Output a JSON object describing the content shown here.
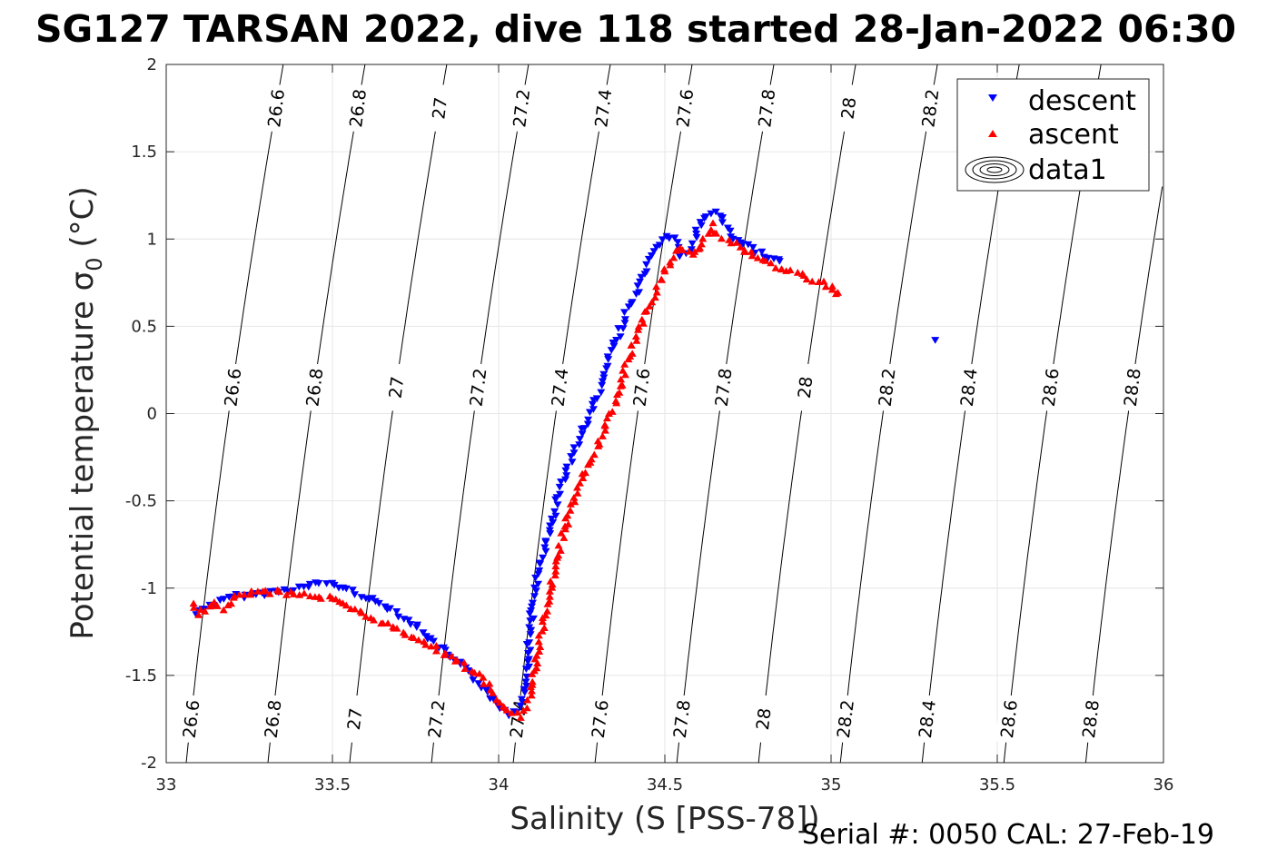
{
  "chart_data": {
    "type": "scatter",
    "title": "SG127 TARSAN 2022, dive 118 started 28-Jan-2022 06:30",
    "xlabel": "Salinity (S [PSS-78])",
    "ylabel_main": "Potential temperature ",
    "ylabel_sym": "σ",
    "ylabel_sub": "0",
    "ylabel_unit": " (°C)",
    "xlim": [
      33,
      36
    ],
    "ylim": [
      -2,
      2
    ],
    "x_ticks": [
      "33",
      "33.5",
      "34",
      "34.5",
      "35",
      "35.5",
      "36"
    ],
    "y_ticks": [
      "-2",
      "-1.5",
      "-1",
      "-0.5",
      "0",
      "0.5",
      "1",
      "1.5",
      "2"
    ],
    "grid": true,
    "legend_position": "top-right",
    "legend": [
      {
        "label": "descent",
        "marker": "triangle-down",
        "color": "#0000ff"
      },
      {
        "label": "ascent",
        "marker": "triangle-up",
        "color": "#ff0000"
      },
      {
        "label": "data1",
        "marker": "contour",
        "color": "#000000"
      }
    ],
    "density_contours": {
      "levels": [
        "26.6",
        "26.8",
        "27",
        "27.2",
        "27.4",
        "27.6",
        "27.8",
        "28",
        "28.2",
        "28.4",
        "28.6",
        "28.8"
      ],
      "salinity_at_minus2C": [
        33.06,
        33.306,
        33.552,
        33.798,
        34.044,
        34.29,
        34.536,
        34.782,
        35.028,
        35.274,
        35.52,
        35.766
      ],
      "salinity_per_degC": 0.055,
      "curvature": 0.0045
    },
    "series": [
      {
        "name": "descent",
        "color": "#0000ff",
        "marker": "triangle-down",
        "x": [
          33.09,
          33.11,
          33.13,
          33.16,
          33.2,
          33.3,
          33.4,
          33.45,
          33.48,
          33.52,
          33.57,
          33.62,
          33.68,
          33.74,
          33.8,
          33.86,
          33.92,
          33.97,
          34.0,
          34.03,
          34.06,
          34.08,
          34.09,
          34.1,
          34.11,
          34.13,
          34.15,
          34.17,
          34.19,
          34.22,
          34.25,
          34.28,
          34.31,
          34.33,
          34.36,
          34.39,
          34.42,
          34.45,
          34.48,
          34.5,
          34.53,
          34.55,
          34.58,
          34.6,
          34.62,
          34.64,
          34.66,
          34.7,
          34.74,
          34.79,
          34.85,
          35.31
        ],
        "y": [
          -1.15,
          -1.12,
          -1.1,
          -1.08,
          -1.05,
          -1.03,
          -1.0,
          -0.98,
          -0.97,
          -0.99,
          -1.03,
          -1.07,
          -1.12,
          -1.2,
          -1.3,
          -1.4,
          -1.5,
          -1.6,
          -1.67,
          -1.72,
          -1.7,
          -1.55,
          -1.35,
          -1.15,
          -1.0,
          -0.85,
          -0.7,
          -0.55,
          -0.4,
          -0.25,
          -0.12,
          0.02,
          0.15,
          0.3,
          0.45,
          0.6,
          0.7,
          0.85,
          0.95,
          1.02,
          1.0,
          0.9,
          0.92,
          1.05,
          1.12,
          1.15,
          1.14,
          1.02,
          0.97,
          0.92,
          0.86,
          0.43
        ]
      },
      {
        "name": "ascent",
        "color": "#ff0000",
        "marker": "triangle-up",
        "x": [
          33.08,
          33.1,
          33.12,
          33.15,
          33.17,
          33.22,
          33.3,
          33.4,
          33.5,
          33.57,
          33.63,
          33.7,
          33.77,
          33.83,
          33.88,
          33.94,
          33.98,
          34.01,
          34.04,
          34.07,
          34.09,
          34.11,
          34.13,
          34.15,
          34.17,
          34.19,
          34.21,
          34.24,
          34.27,
          34.3,
          34.33,
          34.36,
          34.38,
          34.4,
          34.43,
          34.46,
          34.49,
          34.52,
          34.55,
          34.58,
          34.61,
          34.64,
          34.66,
          34.69,
          34.79,
          34.82,
          34.87,
          35.01,
          35.02
        ],
        "y": [
          -1.1,
          -1.14,
          -1.13,
          -1.08,
          -1.12,
          -1.03,
          -1.02,
          -1.03,
          -1.06,
          -1.13,
          -1.18,
          -1.24,
          -1.3,
          -1.37,
          -1.42,
          -1.5,
          -1.58,
          -1.68,
          -1.72,
          -1.73,
          -1.65,
          -1.45,
          -1.25,
          -1.05,
          -0.88,
          -0.72,
          -0.58,
          -0.43,
          -0.3,
          -0.17,
          -0.03,
          0.1,
          0.25,
          0.38,
          0.52,
          0.65,
          0.78,
          0.88,
          0.95,
          0.9,
          0.98,
          1.08,
          1.02,
          1.0,
          0.88,
          0.85,
          0.82,
          0.72,
          0.68
        ]
      }
    ]
  },
  "footer": {
    "serial_text": "Serial #: 0050  CAL: 27-Feb-19"
  }
}
